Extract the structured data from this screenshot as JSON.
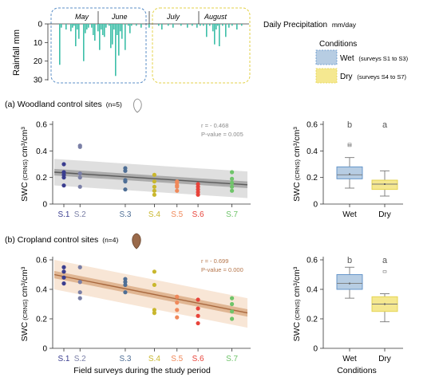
{
  "colors": {
    "rain": "#3dbfa8",
    "wet_box": "#b7cde3",
    "wet_border": "#5b8fc7",
    "dry_box": "#f5e890",
    "dry_border": "#e3d24a",
    "woodland_band": "#d9d9d9",
    "woodland_ci": "#9a9a9a",
    "woodland_line": "#5a5a5a",
    "cropland_band": "#f7e2cf",
    "cropland_ci": "#d8a57c",
    "cropland_line": "#a8683e",
    "stats_woodland": "#8a8a8a",
    "stats_cropland": "#b5754a",
    "S1": "#3a3d8f",
    "S2": "#7a7fa6",
    "S3": "#4e6e95",
    "S4": "#c9b72e",
    "S5": "#f0895a",
    "S6": "#e8433a",
    "S7": "#6fc46a"
  },
  "precip": {
    "title": "Daily Precipitation",
    "unit": "mm/day",
    "ylabel": "Rainfall  mm",
    "months": [
      "May",
      "June",
      "July",
      "August"
    ],
    "ticks": [
      "0",
      "10",
      "20",
      "30"
    ]
  },
  "legend": {
    "title": "Conditions",
    "wet_label": "Wet",
    "wet_sub": "(surveys S1 to S3)",
    "dry_label": "Dry",
    "dry_sub": "(surveys S4 to S7)"
  },
  "panel_a": {
    "title": "(a) Woodland control sites",
    "n": "(n=5)",
    "r_text": "r = - 0.468",
    "p_text": "P-value = 0.005"
  },
  "panel_b": {
    "title": "(b) Cropland control sites",
    "n": "(n=4)",
    "r_text": "r = - 0.699",
    "p_text": "P-value = 0.000"
  },
  "axis": {
    "scatter_ylabel_pre": "SWC",
    "scatter_ylabel_sub": "(CRNS)",
    "scatter_ylabel_unit": "cm³/cm³",
    "scatter_xlabel": "Field surveys during the study period",
    "box_xlabel": "Conditions",
    "box_categories": [
      "Wet",
      "Dry"
    ],
    "surveys": [
      "S.1",
      "S.2",
      "S.3",
      "S.4",
      "S.5",
      "S.6",
      "S.7"
    ],
    "yticks": [
      "0",
      "0.2",
      "0.4",
      "0.6"
    ]
  },
  "box_letters": {
    "a_wet": "b",
    "a_dry": "a",
    "b_wet": "b",
    "b_dry": "a"
  },
  "chart_data": [
    {
      "type": "bar",
      "name": "daily_precipitation",
      "title": "Daily Precipitation",
      "ylabel": "Rainfall mm",
      "ylim": [
        30,
        0
      ],
      "x_unit": "day index from start of May",
      "x": [
        4,
        5,
        8,
        11,
        12,
        13,
        14,
        15,
        16,
        19,
        20,
        21,
        22,
        24,
        25,
        26,
        28,
        29,
        30,
        31,
        32,
        33,
        35,
        36,
        37,
        38,
        39,
        40,
        41,
        42,
        43,
        45,
        47,
        48,
        49,
        52,
        55,
        60,
        66,
        68,
        72,
        75,
        80,
        84,
        87,
        90,
        92,
        94,
        96,
        98,
        100,
        101,
        102,
        103,
        104,
        106,
        108,
        110,
        112,
        115,
        118
      ],
      "values": [
        22,
        2,
        3,
        4,
        2,
        1,
        12,
        3,
        8,
        20,
        5,
        3,
        2,
        2,
        6,
        9,
        4,
        14,
        3,
        6,
        7,
        2,
        1,
        13,
        11,
        3,
        28,
        6,
        17,
        4,
        8,
        14,
        1,
        5,
        1,
        1,
        2,
        2,
        1,
        3,
        1,
        2,
        1,
        2,
        1,
        2,
        1,
        1,
        7,
        1,
        4,
        11,
        3,
        1,
        12,
        1,
        7,
        2,
        1,
        3,
        1
      ]
    },
    {
      "type": "scatter",
      "name": "woodland_swc",
      "title": "(a) Woodland control sites (n=5)",
      "ylabel": "SWC (CRNS) cm³/cm³",
      "ylim": [
        0,
        0.6
      ],
      "categories": [
        "S.1",
        "S.2",
        "S.3",
        "S.4",
        "S.5",
        "S.6",
        "S.7"
      ],
      "x_positions": [
        0,
        0.5,
        1.9,
        2.8,
        3.5,
        4.15,
        5.2
      ],
      "series": [
        {
          "name": "S.1",
          "values": [
            0.14,
            0.2,
            0.22,
            0.24,
            0.3
          ]
        },
        {
          "name": "S.2",
          "values": [
            0.13,
            0.2,
            0.23,
            0.43,
            0.44
          ]
        },
        {
          "name": "S.3",
          "values": [
            0.11,
            0.17,
            0.18,
            0.25,
            0.27
          ]
        },
        {
          "name": "S.4",
          "values": [
            0.07,
            0.1,
            0.13,
            0.17,
            0.22
          ]
        },
        {
          "name": "S.5",
          "values": [
            0.1,
            0.13,
            0.14,
            0.16,
            0.17
          ]
        },
        {
          "name": "S.6",
          "values": [
            0.07,
            0.09,
            0.11,
            0.13,
            0.15
          ]
        },
        {
          "name": "S.7",
          "values": [
            0.1,
            0.13,
            0.16,
            0.19,
            0.24
          ]
        }
      ],
      "regression": {
        "r": -0.468,
        "p_value": 0.005,
        "y_start": 0.24,
        "y_end": 0.145
      }
    },
    {
      "type": "box",
      "name": "woodland_box",
      "ylabel": "SWC (CRNS) cm³/cm³",
      "ylim": [
        0,
        0.6
      ],
      "categories": [
        "Wet",
        "Dry"
      ],
      "boxes": [
        {
          "name": "Wet",
          "min": 0.12,
          "q1": 0.19,
          "median": 0.22,
          "mean": 0.225,
          "q3": 0.28,
          "max": 0.35,
          "outliers": [
            0.44,
            0.45
          ],
          "letter": "b"
        },
        {
          "name": "Dry",
          "min": 0.06,
          "q1": 0.11,
          "median": 0.15,
          "mean": 0.15,
          "q3": 0.18,
          "max": 0.25,
          "outliers": [],
          "letter": "a"
        }
      ]
    },
    {
      "type": "scatter",
      "name": "cropland_swc",
      "title": "(b) Cropland control sites (n=4)",
      "ylabel": "SWC (CRNS) cm³/cm³",
      "xlabel": "Field surveys during the study period",
      "ylim": [
        0,
        0.6
      ],
      "categories": [
        "S.1",
        "S.2",
        "S.3",
        "S.4",
        "S.5",
        "S.6",
        "S.7"
      ],
      "x_positions": [
        0,
        0.5,
        1.9,
        2.8,
        3.5,
        4.15,
        5.2
      ],
      "series": [
        {
          "name": "S.1",
          "values": [
            0.44,
            0.48,
            0.52,
            0.55
          ]
        },
        {
          "name": "S.2",
          "values": [
            0.34,
            0.38,
            0.45,
            0.55
          ]
        },
        {
          "name": "S.3",
          "values": [
            0.38,
            0.43,
            0.45,
            0.47
          ]
        },
        {
          "name": "S.4",
          "values": [
            0.24,
            0.26,
            0.43,
            0.52
          ]
        },
        {
          "name": "S.5",
          "values": [
            0.21,
            0.26,
            0.31,
            0.35
          ]
        },
        {
          "name": "S.6",
          "values": [
            0.17,
            0.22,
            0.27,
            0.33
          ]
        },
        {
          "name": "S.7",
          "values": [
            0.2,
            0.25,
            0.3,
            0.34
          ]
        }
      ],
      "regression": {
        "r": -0.699,
        "p_value": 0.0,
        "y_start": 0.5,
        "y_end": 0.24
      }
    },
    {
      "type": "box",
      "name": "cropland_box",
      "ylabel": "SWC (CRNS) cm³/cm³",
      "xlabel": "Conditions",
      "ylim": [
        0,
        0.6
      ],
      "categories": [
        "Wet",
        "Dry"
      ],
      "boxes": [
        {
          "name": "Wet",
          "min": 0.34,
          "q1": 0.4,
          "median": 0.44,
          "mean": 0.44,
          "q3": 0.5,
          "max": 0.55,
          "outliers": [],
          "letter": "b"
        },
        {
          "name": "Dry",
          "min": 0.18,
          "q1": 0.25,
          "median": 0.3,
          "mean": 0.3,
          "q3": 0.35,
          "max": 0.37,
          "outliers": [
            0.52
          ],
          "letter": "a"
        }
      ]
    }
  ]
}
